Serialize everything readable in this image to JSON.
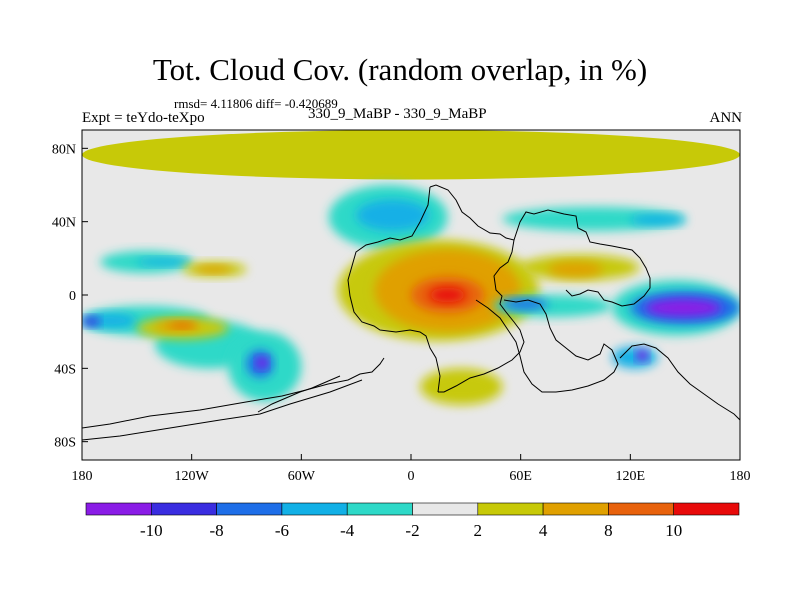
{
  "title": "Tot. Cloud Cov. (random overlap, in %)",
  "stats": "rmsd= 4.11806 diff= -0.420689",
  "experiment": "Expt = teYdo-teXpo",
  "case": "330_9_MaBP - 330_9_MaBP",
  "season": "ANN",
  "map": {
    "lon_range": [
      -180,
      180
    ],
    "lat_range": [
      -90,
      90
    ],
    "x_ticks": [
      {
        "value": -180,
        "label": "180"
      },
      {
        "value": -120,
        "label": "120W"
      },
      {
        "value": -60,
        "label": "60W"
      },
      {
        "value": 0,
        "label": "0"
      },
      {
        "value": 60,
        "label": "60E"
      },
      {
        "value": 120,
        "label": "120E"
      },
      {
        "value": 180,
        "label": "180"
      }
    ],
    "y_ticks": [
      {
        "value": 80,
        "label": "80N"
      },
      {
        "value": 40,
        "label": "40N"
      },
      {
        "value": 0,
        "label": "0"
      },
      {
        "value": -40,
        "label": "40S"
      },
      {
        "value": -80,
        "label": "80S"
      }
    ],
    "background_color": "#e8e8e8"
  },
  "colorbar": {
    "colors": [
      "#8a1ce6",
      "#3a2de0",
      "#1e6ee8",
      "#12b0e6",
      "#2ed9c8",
      "#e8e8e8",
      "#c7c908",
      "#e0a000",
      "#e8620c",
      "#e80a0a"
    ],
    "labels": [
      "-10",
      "-8",
      "-6",
      "-4",
      "-2",
      "2",
      "4",
      "8",
      "10"
    ]
  },
  "fields": [
    {
      "level": 2,
      "lon": [
        -180,
        180
      ],
      "lat": [
        63,
        90
      ]
    },
    {
      "level": -2,
      "lon": [
        -170,
        -120
      ],
      "lat": [
        12,
        24
      ]
    },
    {
      "level": -4,
      "lon": [
        -150,
        -120
      ],
      "lat": [
        16,
        20
      ]
    },
    {
      "level": -2,
      "lon": [
        -180,
        -110
      ],
      "lat": [
        -22,
        -6
      ]
    },
    {
      "level": -4,
      "lon": [
        -180,
        -150
      ],
      "lat": [
        -18,
        -10
      ]
    },
    {
      "level": -8,
      "lon": [
        -180,
        -170
      ],
      "lat": [
        -17,
        -12
      ]
    },
    {
      "level": -2,
      "lon": [
        -140,
        -80
      ],
      "lat": [
        -40,
        -14
      ]
    },
    {
      "level": 2,
      "lon": [
        -150,
        -100
      ],
      "lat": [
        -24,
        -12
      ]
    },
    {
      "level": 4,
      "lon": [
        -140,
        -115
      ],
      "lat": [
        -20,
        -14
      ]
    },
    {
      "level": 8,
      "lon": [
        -132,
        -118
      ],
      "lat": [
        -18,
        -15
      ]
    },
    {
      "level": 2,
      "lon": [
        -125,
        -90
      ],
      "lat": [
        10,
        18
      ]
    },
    {
      "level": 4,
      "lon": [
        -118,
        -98
      ],
      "lat": [
        12,
        16
      ]
    },
    {
      "level": -2,
      "lon": [
        -100,
        -60
      ],
      "lat": [
        -58,
        -20
      ]
    },
    {
      "level": -6,
      "lon": [
        -90,
        -75
      ],
      "lat": [
        -45,
        -30
      ]
    },
    {
      "level": -10,
      "lon": [
        -85,
        -78
      ],
      "lat": [
        -40,
        -34
      ]
    },
    {
      "level": -2,
      "lon": [
        -45,
        20
      ],
      "lat": [
        25,
        60
      ]
    },
    {
      "level": -4,
      "lon": [
        -30,
        10
      ],
      "lat": [
        35,
        52
      ]
    },
    {
      "level": 2,
      "lon": [
        -40,
        70
      ],
      "lat": [
        -25,
        30
      ]
    },
    {
      "level": 4,
      "lon": [
        -20,
        60
      ],
      "lat": [
        -20,
        25
      ]
    },
    {
      "level": 8,
      "lon": [
        0,
        40
      ],
      "lat": [
        -10,
        10
      ]
    },
    {
      "level": 10,
      "lon": [
        10,
        30
      ],
      "lat": [
        -4,
        4
      ]
    },
    {
      "level": 2,
      "lon": [
        5,
        50
      ],
      "lat": [
        -60,
        -40
      ]
    },
    {
      "level": 2,
      "lon": [
        60,
        125
      ],
      "lat": [
        8,
        22
      ]
    },
    {
      "level": 4,
      "lon": [
        75,
        105
      ],
      "lat": [
        10,
        18
      ]
    },
    {
      "level": -2,
      "lon": [
        45,
        110
      ],
      "lat": [
        -12,
        0
      ]
    },
    {
      "level": -6,
      "lon": [
        50,
        75
      ],
      "lat": [
        -8,
        -2
      ]
    },
    {
      "level": -2,
      "lon": [
        110,
        180
      ],
      "lat": [
        -22,
        8
      ]
    },
    {
      "level": -6,
      "lon": [
        120,
        180
      ],
      "lat": [
        -16,
        2
      ]
    },
    {
      "level": -10,
      "lon": [
        128,
        170
      ],
      "lat": [
        -12,
        -2
      ]
    },
    {
      "level": -2,
      "lon": [
        50,
        150
      ],
      "lat": [
        35,
        48
      ]
    },
    {
      "level": -4,
      "lon": [
        120,
        150
      ],
      "lat": [
        38,
        44
      ]
    },
    {
      "level": -4,
      "lon": [
        110,
        135
      ],
      "lat": [
        -40,
        -28
      ]
    },
    {
      "level": -10,
      "lon": [
        123,
        130
      ],
      "lat": [
        -36,
        -30
      ]
    }
  ]
}
